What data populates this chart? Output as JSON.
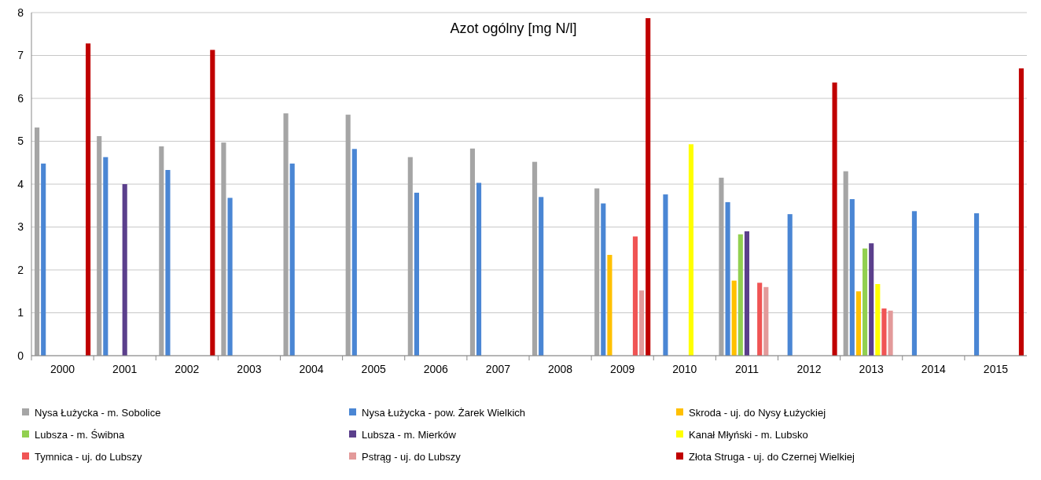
{
  "chart_data": {
    "type": "bar",
    "title": "Azot ogólny [mg N/l]",
    "categories": [
      "2000",
      "2001",
      "2002",
      "2003",
      "2004",
      "2005",
      "2006",
      "2007",
      "2008",
      "2009",
      "2010",
      "2011",
      "2012",
      "2013",
      "2014",
      "2015"
    ],
    "series": [
      {
        "name": "Nysa Łużycka - m. Sobolice",
        "color": "#a5a5a5",
        "values": [
          5.32,
          5.12,
          4.88,
          4.97,
          5.65,
          5.62,
          4.63,
          4.83,
          4.52,
          3.9,
          null,
          4.15,
          null,
          4.3,
          null,
          null
        ]
      },
      {
        "name": "Nysa Łużycka - pow. Żarek Wielkich",
        "color": "#4a86d4",
        "values": [
          4.48,
          4.63,
          4.33,
          3.68,
          4.48,
          4.82,
          3.8,
          4.03,
          3.7,
          3.55,
          3.76,
          3.58,
          3.3,
          3.65,
          3.37,
          3.32
        ]
      },
      {
        "name": "Skroda - uj. do Nysy Łużyckiej",
        "color": "#ffc000",
        "values": [
          null,
          null,
          null,
          null,
          null,
          null,
          null,
          null,
          null,
          2.35,
          null,
          1.75,
          null,
          1.5,
          null,
          null
        ]
      },
      {
        "name": "Lubsza - m. Świbna",
        "color": "#92d050",
        "values": [
          null,
          null,
          null,
          null,
          null,
          null,
          null,
          null,
          null,
          null,
          null,
          2.83,
          null,
          2.5,
          null,
          null
        ]
      },
      {
        "name": "Lubsza - m. Mierków",
        "color": "#5b3f8c",
        "values": [
          null,
          4.0,
          null,
          null,
          null,
          null,
          null,
          null,
          null,
          null,
          null,
          2.9,
          null,
          2.62,
          null,
          null
        ]
      },
      {
        "name": "Kanał Młyński - m. Lubsko",
        "color": "#ffff00",
        "values": [
          null,
          null,
          null,
          null,
          null,
          null,
          null,
          null,
          null,
          null,
          4.93,
          null,
          null,
          1.67,
          null,
          null
        ]
      },
      {
        "name": "Tymnica - uj. do Lubszy",
        "color": "#f05454",
        "values": [
          null,
          null,
          null,
          null,
          null,
          null,
          null,
          null,
          null,
          2.78,
          null,
          1.7,
          null,
          1.1,
          null,
          null
        ]
      },
      {
        "name": "Pstrąg - uj. do Lubszy",
        "color": "#e39a9a",
        "values": [
          null,
          null,
          null,
          null,
          null,
          null,
          null,
          null,
          null,
          1.52,
          null,
          1.6,
          null,
          1.05,
          null,
          null
        ]
      },
      {
        "name": "Złota Struga - uj. do Czernej Wielkiej",
        "color": "#c00000",
        "values": [
          7.28,
          null,
          7.13,
          null,
          null,
          null,
          null,
          null,
          null,
          7.87,
          null,
          null,
          6.37,
          null,
          null,
          6.7
        ]
      }
    ],
    "ylim": [
      0,
      8
    ],
    "yticks": [
      0,
      1,
      2,
      3,
      4,
      5,
      6,
      7,
      8
    ],
    "grid": "y",
    "legend": "bottom"
  }
}
